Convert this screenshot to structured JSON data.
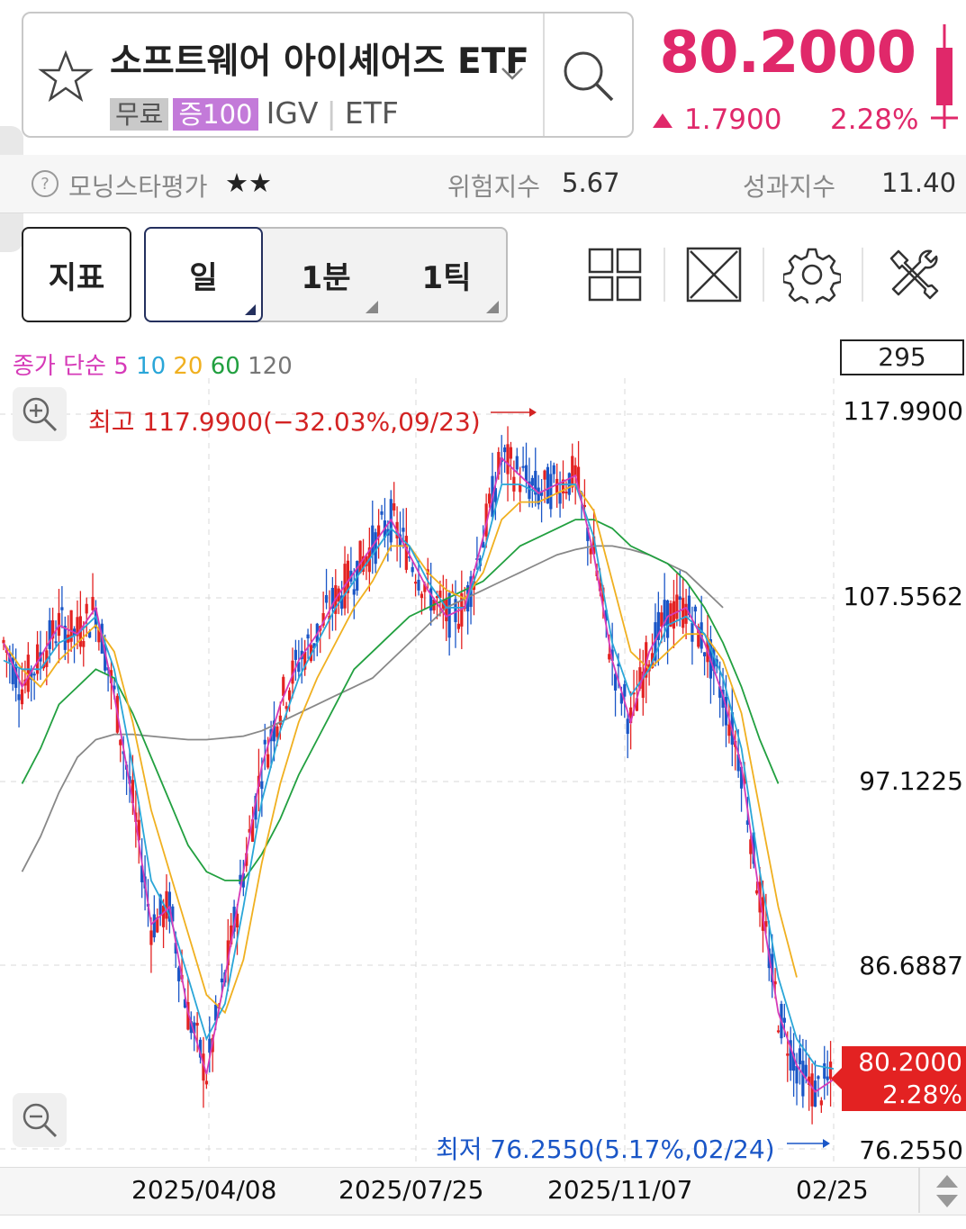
{
  "header": {
    "title": "소프트웨어 아이셰어즈 ETF",
    "tags": [
      "무료",
      "증100"
    ],
    "ticker": "IGV",
    "type": "ETF",
    "price": "80.2000",
    "change": "1.7900",
    "change_pct": "2.28%",
    "up_color": "#e0286a"
  },
  "rating": {
    "morningstar_label": "모닝스타평가",
    "morningstar_stars": "★★",
    "risk_label": "위험지수",
    "risk_value": "5.67",
    "perf_label": "성과지수",
    "perf_value": "11.40"
  },
  "toolbar": {
    "indicator_label": "지표",
    "periods": [
      "일",
      "1분",
      "1틱"
    ],
    "selected_period": "일"
  },
  "chart": {
    "legend_prefix": "종가 단순",
    "ma_periods": [
      "5",
      "10",
      "20",
      "60",
      "120"
    ],
    "ma_colors": [
      "#d63ab8",
      "#2aa6d8",
      "#f0b020",
      "#22a040",
      "#888888"
    ],
    "count": "295",
    "high_label": "최고 117.9900(−32.03%,09/23)",
    "low_label": "최저 76.2550(5.17%,02/24)",
    "current_price": "80.2000",
    "current_pct": "2.28%",
    "y_labels": [
      "117.9900",
      "107.5562",
      "97.1225",
      "86.6887",
      "76.2550"
    ],
    "x_labels": [
      "2025/04/08",
      "2025/07/25",
      "2025/11/07",
      "02/25"
    ]
  },
  "chart_data": {
    "type": "line",
    "title": "",
    "xlabel": "",
    "ylabel": "",
    "ylim": [
      76.255,
      117.99
    ],
    "x_ticks": [
      "2025/04/08",
      "2025/07/25",
      "2025/11/07",
      "02/25"
    ],
    "series": [
      {
        "name": "5",
        "values": [
          105.0,
          102.5,
          104.2,
          106.0,
          105.5,
          107.0,
          102.0,
          96.0,
          89.0,
          90.0,
          84.0,
          80.5,
          86.0,
          92.0,
          98.0,
          101.5,
          104.0,
          105.5,
          107.5,
          109.0,
          110.5,
          112.0,
          110.0,
          108.0,
          106.5,
          107.0,
          111.0,
          115.5,
          114.5,
          113.5,
          114.0,
          114.5,
          110.0,
          104.0,
          100.5,
          104.5,
          106.5,
          107.0,
          105.0,
          102.0,
          98.0,
          90.5,
          84.0,
          81.0,
          79.5,
          80.2
        ]
      },
      {
        "name": "10",
        "values": [
          104.0,
          103.5,
          103.5,
          105.0,
          105.5,
          106.5,
          103.5,
          98.0,
          91.5,
          89.5,
          86.0,
          82.5,
          84.5,
          90.0,
          96.0,
          100.0,
          103.0,
          105.0,
          107.0,
          108.5,
          110.0,
          111.5,
          110.5,
          108.5,
          107.0,
          107.0,
          110.0,
          114.0,
          114.0,
          113.5,
          114.0,
          114.0,
          111.0,
          105.0,
          102.0,
          103.5,
          106.0,
          106.5,
          105.5,
          103.0,
          99.0,
          92.0,
          86.0,
          82.5,
          81.0,
          80.8
        ]
      },
      {
        "name": "20",
        "values": [
          105.0,
          103.5,
          102.5,
          104.0,
          105.0,
          106.0,
          104.5,
          100.5,
          95.5,
          92.0,
          88.5,
          85.0,
          84.0,
          87.0,
          92.5,
          97.0,
          100.5,
          103.0,
          105.0,
          107.0,
          108.5,
          110.5,
          110.5,
          109.0,
          108.0,
          107.5,
          109.0,
          112.0,
          113.0,
          113.0,
          113.5,
          114.0,
          112.5,
          108.5,
          104.5,
          103.5,
          104.5,
          105.5,
          105.5,
          104.0,
          101.0,
          95.5,
          90.0,
          86.0,
          null,
          null
        ]
      },
      {
        "name": "60",
        "values": [
          null,
          97.0,
          99.0,
          101.5,
          102.5,
          103.5,
          103.0,
          101.0,
          98.5,
          96.0,
          93.5,
          92.0,
          91.5,
          91.5,
          93.0,
          95.0,
          97.5,
          99.5,
          101.5,
          103.5,
          104.5,
          105.5,
          106.5,
          107.0,
          107.5,
          108.0,
          108.5,
          109.5,
          110.5,
          111.0,
          111.5,
          112.0,
          112.0,
          111.5,
          110.5,
          110.0,
          109.5,
          108.5,
          107.0,
          105.0,
          102.5,
          99.5,
          97.0,
          null,
          null,
          null
        ]
      },
      {
        "name": "120",
        "values": [
          null,
          92.0,
          94.0,
          96.5,
          98.5,
          99.5,
          99.8,
          99.8,
          99.7,
          99.6,
          99.5,
          99.5,
          99.6,
          99.7,
          100.0,
          100.5,
          101.0,
          101.5,
          102.0,
          102.5,
          103.0,
          104.0,
          105.0,
          106.0,
          107.0,
          107.5,
          108.0,
          108.5,
          109.0,
          109.5,
          110.0,
          110.3,
          110.5,
          110.5,
          110.3,
          110.0,
          109.5,
          109.0,
          108.0,
          107.0,
          null,
          null,
          null,
          null,
          null,
          null
        ]
      }
    ],
    "high": {
      "value": 117.99,
      "date": "09/23"
    },
    "low": {
      "value": 76.255,
      "date": "02/24"
    },
    "last": 80.2,
    "grid": true
  }
}
